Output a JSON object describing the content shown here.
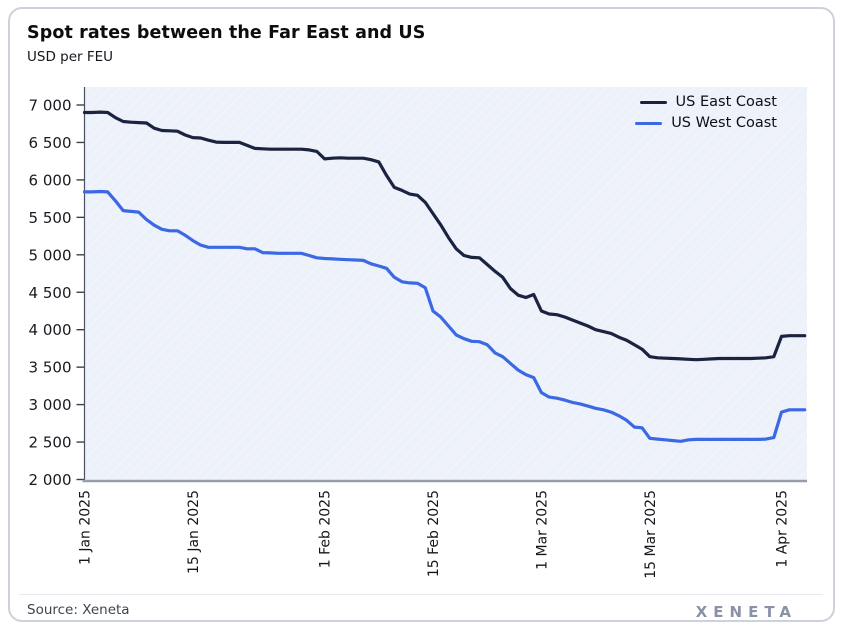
{
  "card": {
    "title": "Spot rates between the Far East and US",
    "subtitle": "USD per FEU"
  },
  "legend": [
    {
      "label": "US East Coast",
      "color": "#1A2340"
    },
    {
      "label": "US West Coast",
      "color": "#3B69E6"
    }
  ],
  "footer": {
    "source": "Source: Xeneta",
    "brand": "XENETA"
  },
  "chart_data": {
    "type": "line",
    "title": "Spot rates between the Far East and US",
    "ylabel": "USD per FEU",
    "ylim": [
      2000,
      7000
    ],
    "grid": false,
    "legend_position": "top-right",
    "plot_bg": "#EDF1F9",
    "x_start_date": "1 Jan 2025",
    "x_interval_days": 1,
    "x_ticks": [
      {
        "label": "1 Jan 2025",
        "day": 0
      },
      {
        "label": "15 Jan 2025",
        "day": 14
      },
      {
        "label": "1 Feb 2025",
        "day": 31
      },
      {
        "label": "15 Feb 2025",
        "day": 45
      },
      {
        "label": "1 Mar 2025",
        "day": 59
      },
      {
        "label": "15 Mar 2025",
        "day": 73
      },
      {
        "label": "1 Apr 2025",
        "day": 90
      }
    ],
    "y_ticks": [
      {
        "label": "2 000",
        "value": 2000
      },
      {
        "label": "2 500",
        "value": 2500
      },
      {
        "label": "3 000",
        "value": 3000
      },
      {
        "label": "3 500",
        "value": 3500
      },
      {
        "label": "4 000",
        "value": 4000
      },
      {
        "label": "4 500",
        "value": 4500
      },
      {
        "label": "5 000",
        "value": 5000
      },
      {
        "label": "5 500",
        "value": 5500
      },
      {
        "label": "6 000",
        "value": 6000
      },
      {
        "label": "6 500",
        "value": 6500
      },
      {
        "label": "7 000",
        "value": 7000
      }
    ],
    "series": [
      {
        "name": "US East Coast",
        "color": "#1A2340",
        "values": [
          6900,
          6900,
          6905,
          6900,
          6830,
          6780,
          6770,
          6765,
          6760,
          6690,
          6660,
          6655,
          6650,
          6600,
          6565,
          6560,
          6530,
          6505,
          6500,
          6500,
          6500,
          6460,
          6420,
          6415,
          6410,
          6410,
          6410,
          6410,
          6410,
          6400,
          6380,
          6280,
          6290,
          6295,
          6290,
          6290,
          6290,
          6270,
          6240,
          6060,
          5900,
          5860,
          5810,
          5795,
          5700,
          5550,
          5400,
          5230,
          5080,
          4990,
          4965,
          4960,
          4870,
          4780,
          4700,
          4550,
          4460,
          4430,
          4470,
          4250,
          4210,
          4200,
          4170,
          4130,
          4090,
          4050,
          4000,
          3975,
          3950,
          3900,
          3860,
          3800,
          3740,
          3640,
          3625,
          3620,
          3615,
          3610,
          3605,
          3600,
          3605,
          3610,
          3615,
          3615,
          3615,
          3615,
          3615,
          3620,
          3625,
          3640,
          3910,
          3920,
          3920,
          3920
        ]
      },
      {
        "name": "US West Coast",
        "color": "#3B69E6",
        "values": [
          5840,
          5840,
          5845,
          5840,
          5720,
          5590,
          5580,
          5570,
          5470,
          5395,
          5340,
          5320,
          5320,
          5260,
          5190,
          5130,
          5100,
          5100,
          5100,
          5100,
          5100,
          5080,
          5080,
          5030,
          5025,
          5020,
          5020,
          5020,
          5020,
          4990,
          4960,
          4950,
          4945,
          4940,
          4935,
          4930,
          4925,
          4880,
          4850,
          4820,
          4700,
          4640,
          4625,
          4620,
          4560,
          4250,
          4170,
          4050,
          3930,
          3880,
          3845,
          3840,
          3800,
          3690,
          3640,
          3550,
          3460,
          3400,
          3360,
          3160,
          3100,
          3085,
          3060,
          3030,
          3010,
          2980,
          2950,
          2930,
          2900,
          2850,
          2790,
          2700,
          2690,
          2550,
          2540,
          2530,
          2520,
          2510,
          2530,
          2535,
          2535,
          2535,
          2535,
          2535,
          2535,
          2535,
          2535,
          2535,
          2540,
          2560,
          2900,
          2930,
          2930,
          2930
        ]
      }
    ]
  }
}
